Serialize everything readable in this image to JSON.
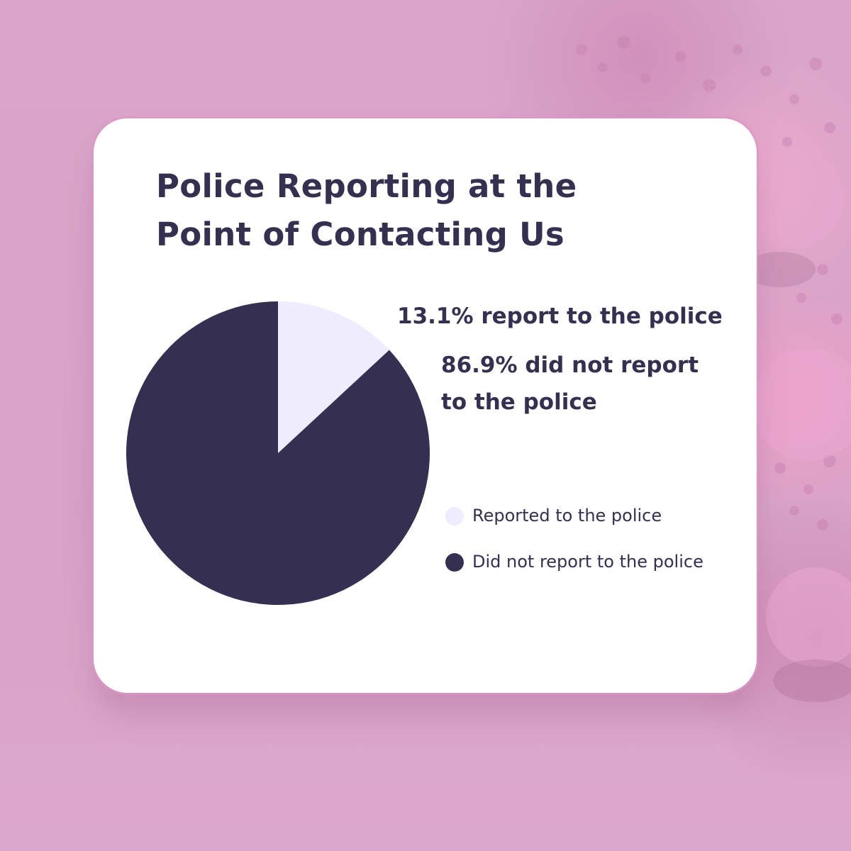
{
  "chart_data": {
    "type": "pie",
    "title": "Police Reporting at the Point of Contacting Us",
    "categories": [
      "Reported to the police",
      "Did not report to the police"
    ],
    "values": [
      13.1,
      86.9
    ],
    "unit": "%",
    "colors": [
      "#eeecfd",
      "#352f52"
    ],
    "annotations": [
      "13.1% report to the police",
      "86.9% did not report to the police"
    ],
    "legend": {
      "position": "right",
      "entries": [
        "Reported to the police",
        "Did not report to the police"
      ]
    }
  },
  "theme": {
    "text_color": "#35304f",
    "card_color": "#ffffff",
    "background_color": "#dca6ca"
  }
}
